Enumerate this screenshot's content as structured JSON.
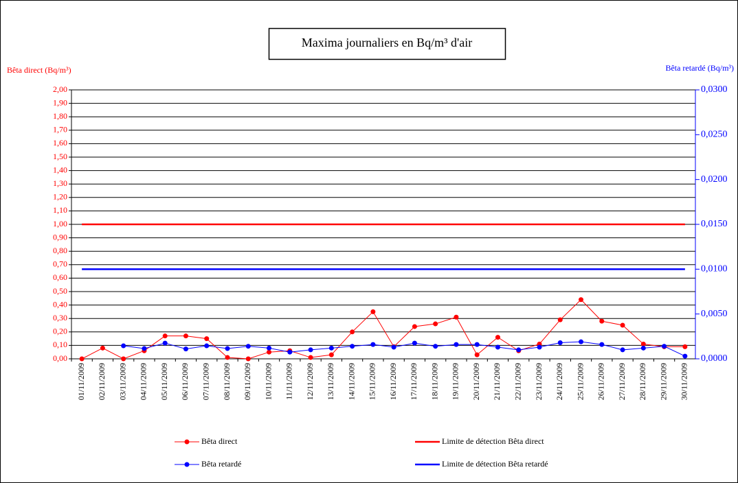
{
  "chart_data": {
    "type": "line",
    "title": "Maxima journaliers en Bq/m³ d'air",
    "y_label": "Bêta direct (Bq/m³)",
    "y2_label": "Bêta retardé (Bq/m³)",
    "categories": [
      "01/11/2009",
      "02/11/2009",
      "03/11/2009",
      "04/11/2009",
      "05/11/2009",
      "06/11/2009",
      "07/11/2009",
      "08/11/2009",
      "09/11/2009",
      "10/11/2009",
      "11/11/2009",
      "12/11/2009",
      "13/11/2009",
      "14/11/2009",
      "15/11/2009",
      "16/11/2009",
      "17/11/2009",
      "18/11/2009",
      "19/11/2009",
      "20/11/2009",
      "21/11/2009",
      "22/11/2009",
      "23/11/2009",
      "24/11/2009",
      "25/11/2009",
      "26/11/2009",
      "27/11/2009",
      "28/11/2009",
      "29/11/2009",
      "30/11/2009"
    ],
    "series": [
      {
        "name": "Bêta direct",
        "color": "#ff0000",
        "markers": true,
        "values": [
          0.0,
          0.08,
          0.0,
          0.06,
          0.17,
          0.17,
          0.15,
          0.01,
          0.0,
          0.05,
          0.06,
          0.01,
          0.03,
          0.2,
          0.35,
          0.09,
          0.24,
          0.26,
          0.31,
          0.03,
          0.16,
          0.06,
          0.11,
          0.29,
          0.44,
          0.28,
          0.25,
          0.11,
          0.09,
          0.09
        ]
      },
      {
        "name": "Limite de détection Bêta direct",
        "color": "#ff0000",
        "markers": false,
        "values": [
          1,
          1,
          1,
          1,
          1,
          1,
          1,
          1,
          1,
          1,
          1,
          1,
          1,
          1,
          1,
          1,
          1,
          1,
          1,
          1,
          1,
          1,
          1,
          1,
          1,
          1,
          1,
          1,
          1,
          1
        ]
      },
      {
        "name": "Bêta retardé",
        "color": "#0000ff",
        "markers": true,
        "axis": "y2",
        "values": [
          null,
          null,
          0.00145,
          0.00115,
          0.00175,
          0.0011,
          0.00145,
          0.00115,
          0.0014,
          0.0012,
          0.00075,
          0.001,
          0.0012,
          0.0014,
          0.0016,
          0.0013,
          0.00175,
          0.0014,
          0.0016,
          0.0016,
          0.0013,
          0.001,
          0.0013,
          0.0018,
          0.0019,
          0.0016,
          0.001,
          0.0012,
          0.0014,
          0.0003
        ]
      },
      {
        "name": "Limite de détection Bêta retardé",
        "color": "#0000ff",
        "markers": false,
        "axis": "y2",
        "values": [
          0.01,
          0.01,
          0.01,
          0.01,
          0.01,
          0.01,
          0.01,
          0.01,
          0.01,
          0.01,
          0.01,
          0.01,
          0.01,
          0.01,
          0.01,
          0.01,
          0.01,
          0.01,
          0.01,
          0.01,
          0.01,
          0.01,
          0.01,
          0.01,
          0.01,
          0.01,
          0.01,
          0.01,
          0.01,
          0.01
        ]
      }
    ],
    "ylim": [
      0,
      2
    ],
    "yticks": [
      {
        "value": 0,
        "label": "0,00"
      },
      {
        "value": 0.1,
        "label": "0,10"
      },
      {
        "value": 0.2,
        "label": "0,20"
      },
      {
        "value": 0.3,
        "label": "0,30"
      },
      {
        "value": 0.4,
        "label": "0,40"
      },
      {
        "value": 0.5,
        "label": "0,50"
      },
      {
        "value": 0.6,
        "label": "0,60"
      },
      {
        "value": 0.7,
        "label": "0,70"
      },
      {
        "value": 0.8,
        "label": "0,80"
      },
      {
        "value": 0.9,
        "label": "0,90"
      },
      {
        "value": 1,
        "label": "1,00"
      },
      {
        "value": 1.1,
        "label": "1,10"
      },
      {
        "value": 1.2,
        "label": "1,20"
      },
      {
        "value": 1.3,
        "label": "1,30"
      },
      {
        "value": 1.4,
        "label": "1,40"
      },
      {
        "value": 1.5,
        "label": "1,50"
      },
      {
        "value": 1.6,
        "label": "1,60"
      },
      {
        "value": 1.7,
        "label": "1,70"
      },
      {
        "value": 1.8,
        "label": "1,80"
      },
      {
        "value": 1.9,
        "label": "1,90"
      },
      {
        "value": 2,
        "label": "2,00"
      }
    ],
    "y_color": "#ff0000",
    "y2lim": [
      0,
      0.03
    ],
    "y2ticks": [
      {
        "value": 0,
        "label": "0,0000"
      },
      {
        "value": 0.005,
        "label": "0,0050"
      },
      {
        "value": 0.01,
        "label": "0,0100"
      },
      {
        "value": 0.015,
        "label": "0,0150"
      },
      {
        "value": 0.02,
        "label": "0,0200"
      },
      {
        "value": 0.025,
        "label": "0,0250"
      },
      {
        "value": 0.03,
        "label": "0,0300"
      }
    ],
    "y2_color": "#0000ff",
    "grid": true
  }
}
